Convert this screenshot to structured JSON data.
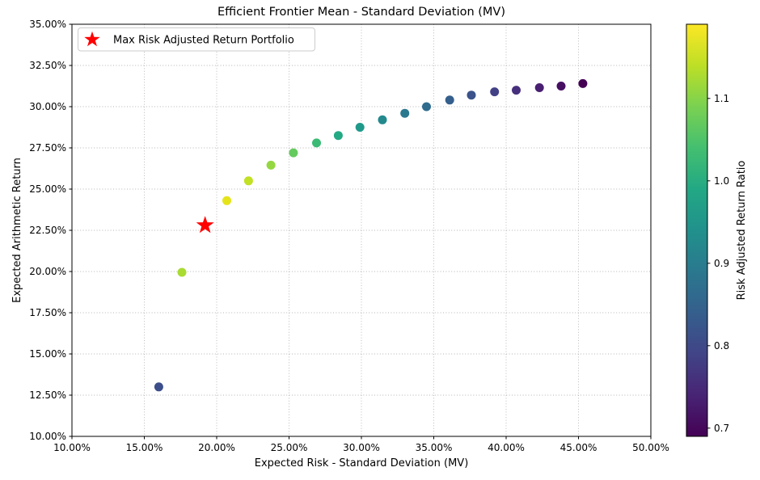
{
  "chart_data": {
    "type": "scatter",
    "title": "Efficient Frontier Mean - Standard Deviation (MV)",
    "xlabel": "Expected Risk - Standard Deviation (MV)",
    "ylabel": "Expected Arithmetic Return",
    "xlim": [
      10,
      50
    ],
    "ylim": [
      10,
      35
    ],
    "grid": true,
    "x_ticks": [
      {
        "value": 10,
        "label": "10.00%"
      },
      {
        "value": 15,
        "label": "15.00%"
      },
      {
        "value": 20,
        "label": "20.00%"
      },
      {
        "value": 25,
        "label": "25.00%"
      },
      {
        "value": 30,
        "label": "30.00%"
      },
      {
        "value": 35,
        "label": "35.00%"
      },
      {
        "value": 40,
        "label": "40.00%"
      },
      {
        "value": 45,
        "label": "45.00%"
      },
      {
        "value": 50,
        "label": "50.00%"
      }
    ],
    "y_ticks": [
      {
        "value": 10,
        "label": "10.00%"
      },
      {
        "value": 12.5,
        "label": "12.50%"
      },
      {
        "value": 15,
        "label": "15.00%"
      },
      {
        "value": 17.5,
        "label": "17.50%"
      },
      {
        "value": 20,
        "label": "20.00%"
      },
      {
        "value": 22.5,
        "label": "22.50%"
      },
      {
        "value": 25,
        "label": "25.00%"
      },
      {
        "value": 27.5,
        "label": "27.50%"
      },
      {
        "value": 30,
        "label": "30.00%"
      },
      {
        "value": 32.5,
        "label": "32.50%"
      },
      {
        "value": 35,
        "label": "35.00%"
      }
    ],
    "legend": {
      "position": "upper left",
      "entries": [
        {
          "label": "Max Risk Adjusted Return Portfolio",
          "marker": "star",
          "color": "#ff0000"
        }
      ]
    },
    "series": [
      {
        "name": "efficient-frontier-portfolios",
        "marker": "circle",
        "points": [
          {
            "risk_pct": 16.0,
            "return_pct": 13.0,
            "ratio": 0.81,
            "color": "#3c4f8a"
          },
          {
            "risk_pct": 17.6,
            "return_pct": 19.95,
            "ratio": 1.13,
            "color": "#a9db33"
          },
          {
            "risk_pct": 20.7,
            "return_pct": 24.3,
            "ratio": 1.17,
            "color": "#e5e41b"
          },
          {
            "risk_pct": 22.2,
            "return_pct": 25.5,
            "ratio": 1.15,
            "color": "#c2e024"
          },
          {
            "risk_pct": 23.75,
            "return_pct": 26.45,
            "ratio": 1.11,
            "color": "#94d741"
          },
          {
            "risk_pct": 25.3,
            "return_pct": 27.2,
            "ratio": 1.08,
            "color": "#65cb5e"
          },
          {
            "risk_pct": 26.9,
            "return_pct": 27.8,
            "ratio": 1.03,
            "color": "#3bba75"
          },
          {
            "risk_pct": 28.4,
            "return_pct": 28.25,
            "ratio": 0.99,
            "color": "#23a984"
          },
          {
            "risk_pct": 29.9,
            "return_pct": 28.75,
            "ratio": 0.96,
            "color": "#1f998a"
          },
          {
            "risk_pct": 31.45,
            "return_pct": 29.2,
            "ratio": 0.93,
            "color": "#23898d"
          },
          {
            "risk_pct": 33.0,
            "return_pct": 29.6,
            "ratio": 0.9,
            "color": "#2a788e"
          },
          {
            "risk_pct": 34.5,
            "return_pct": 30.0,
            "ratio": 0.87,
            "color": "#2f6c8e"
          },
          {
            "risk_pct": 36.1,
            "return_pct": 30.4,
            "ratio": 0.84,
            "color": "#355f8d"
          },
          {
            "risk_pct": 37.6,
            "return_pct": 30.7,
            "ratio": 0.82,
            "color": "#3b528b"
          },
          {
            "risk_pct": 39.2,
            "return_pct": 30.9,
            "ratio": 0.79,
            "color": "#424186"
          },
          {
            "risk_pct": 40.7,
            "return_pct": 31.0,
            "ratio": 0.76,
            "color": "#46307d"
          },
          {
            "risk_pct": 42.3,
            "return_pct": 31.15,
            "ratio": 0.74,
            "color": "#481f71"
          },
          {
            "risk_pct": 43.8,
            "return_pct": 31.25,
            "ratio": 0.71,
            "color": "#460f62"
          },
          {
            "risk_pct": 45.3,
            "return_pct": 31.4,
            "ratio": 0.69,
            "color": "#440154"
          }
        ]
      }
    ],
    "max_risk_adjusted_point": {
      "risk_pct": 19.2,
      "return_pct": 22.8,
      "ratio": 1.19,
      "marker": "star",
      "color": "#ff0000"
    },
    "colorbar": {
      "label": "Risk Adjusted Return Ratio",
      "colormap": "viridis",
      "vmin": 0.69,
      "vmax": 1.19,
      "ticks": [
        {
          "value": 0.7,
          "label": "0.7"
        },
        {
          "value": 0.8,
          "label": "0.8"
        },
        {
          "value": 0.9,
          "label": "0.9"
        },
        {
          "value": 1.0,
          "label": "1.0"
        },
        {
          "value": 1.1,
          "label": "1.1"
        }
      ],
      "gradient_stops": [
        "#440154",
        "#482475",
        "#414487",
        "#355f8d",
        "#2a788e",
        "#21918c",
        "#22a884",
        "#44bf70",
        "#7ad151",
        "#bddf26",
        "#fde725"
      ]
    }
  }
}
